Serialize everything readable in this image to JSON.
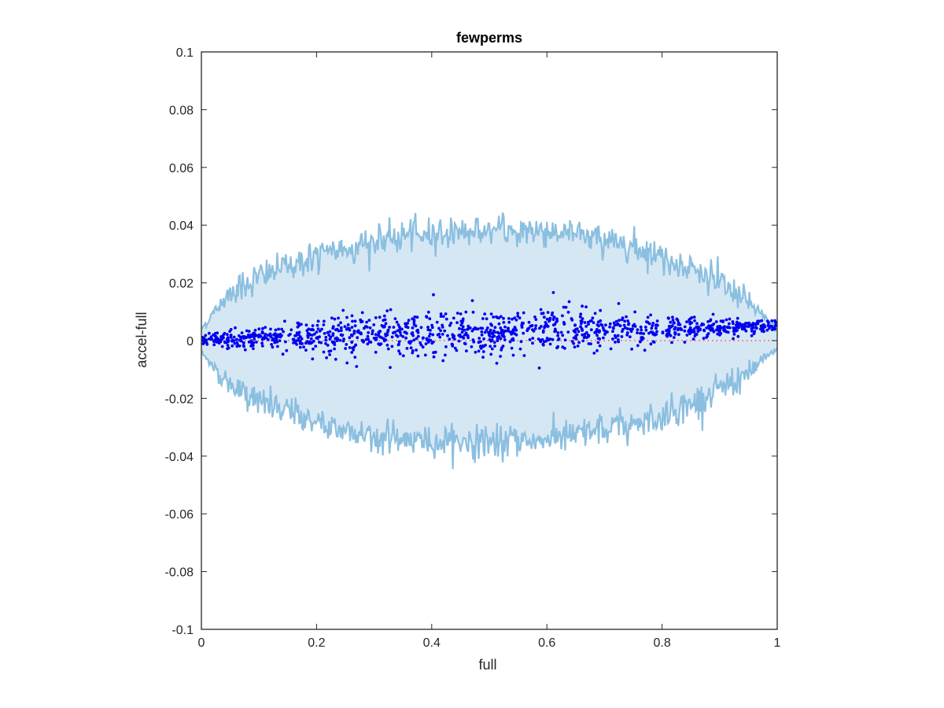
{
  "chart_data": {
    "type": "scatter",
    "title": "fewperms",
    "xlabel": "full",
    "ylabel": "accel-full",
    "xlim": [
      0,
      1
    ],
    "ylim": [
      -0.1,
      0.1
    ],
    "xticks": [
      0,
      0.2,
      0.4,
      0.6,
      0.8,
      1
    ],
    "xtick_labels": [
      "0",
      "0.2",
      "0.4",
      "0.6",
      "0.8",
      "1"
    ],
    "yticks": [
      -0.1,
      -0.08,
      -0.06,
      -0.04,
      -0.02,
      0,
      0.02,
      0.04,
      0.06,
      0.08,
      0.1
    ],
    "ytick_labels": [
      "-0.1",
      "-0.08",
      "-0.06",
      "-0.04",
      "-0.02",
      "0",
      "0.02",
      "0.04",
      "0.06",
      "0.08",
      "0.1"
    ],
    "grid": false,
    "colors": {
      "band_fill": "#d6e7f4",
      "band_edge": "#8bbfe0",
      "points": "#0000ee",
      "reference": "#ff3333",
      "axes": "#262626"
    },
    "envelope": {
      "description_of_shape": "symmetric noisy envelope around zero",
      "x": [
        0,
        0.05,
        0.1,
        0.15,
        0.2,
        0.25,
        0.3,
        0.35,
        0.4,
        0.45,
        0.5,
        0.55,
        0.6,
        0.65,
        0.7,
        0.75,
        0.8,
        0.85,
        0.9,
        0.95,
        1
      ],
      "upper": [
        0.004,
        0.017,
        0.022,
        0.026,
        0.029,
        0.032,
        0.034,
        0.036,
        0.037,
        0.038,
        0.038,
        0.038,
        0.038,
        0.037,
        0.035,
        0.033,
        0.029,
        0.025,
        0.02,
        0.013,
        0.004
      ],
      "lower": [
        -0.004,
        -0.016,
        -0.021,
        -0.025,
        -0.028,
        -0.031,
        -0.033,
        -0.034,
        -0.035,
        -0.035,
        -0.035,
        -0.035,
        -0.034,
        -0.033,
        -0.031,
        -0.029,
        -0.026,
        -0.022,
        -0.017,
        -0.011,
        -0.003
      ]
    },
    "scatter_trend": {
      "x": [
        0,
        0.1,
        0.2,
        0.3,
        0.4,
        0.5,
        0.6,
        0.7,
        0.8,
        0.9,
        1
      ],
      "mean": [
        0.0,
        0.0008,
        0.0015,
        0.002,
        0.0025,
        0.003,
        0.0035,
        0.0038,
        0.004,
        0.0045,
        0.005
      ],
      "spread": [
        0.001,
        0.002,
        0.003,
        0.0035,
        0.004,
        0.004,
        0.0038,
        0.0032,
        0.0025,
        0.0015,
        0.0008
      ]
    },
    "point_count": 1200,
    "reference_line": {
      "y": 0,
      "style": "dotted"
    }
  }
}
